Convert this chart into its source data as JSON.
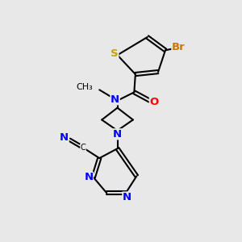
{
  "bg_color": "#e8e8e8",
  "atom_colors": {
    "S": "#c8a000",
    "Br": "#c87800",
    "N": "#0000ff",
    "O": "#ff0000",
    "C": "#000000"
  },
  "bond_color": "#000000",
  "figsize": [
    3.0,
    3.0
  ],
  "dpi": 100
}
